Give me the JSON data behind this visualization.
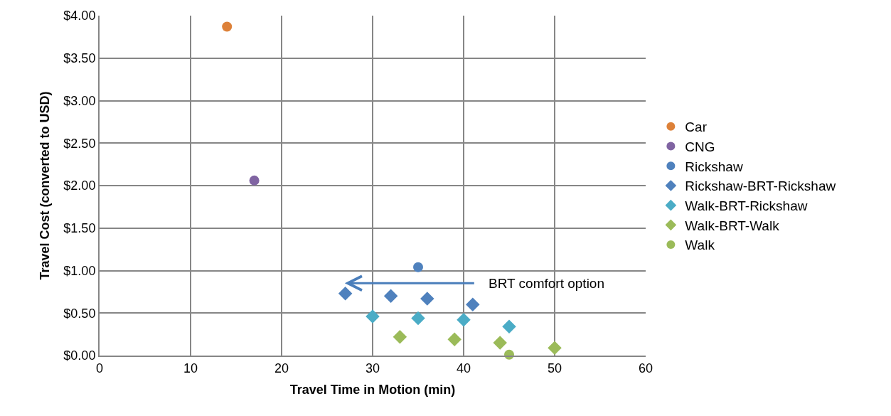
{
  "chart_data": {
    "type": "scatter",
    "xlabel": "Travel Time in Motion (min)",
    "ylabel": "Travel Cost (converted to USD)",
    "series": [
      {
        "name": "Car",
        "color": "#dd8139",
        "marker": "circle",
        "x": [
          14
        ],
        "values": [
          3.87
        ]
      },
      {
        "name": "CNG",
        "color": "#8064a2",
        "marker": "circle",
        "x": [
          17
        ],
        "values": [
          2.06
        ]
      },
      {
        "name": "Rickshaw",
        "color": "#4f81bd",
        "marker": "circle",
        "x": [
          35
        ],
        "values": [
          1.04
        ]
      },
      {
        "name": "Rickshaw-BRT-Rickshaw",
        "color": "#4f81bd",
        "marker": "diamond",
        "x": [
          27,
          32,
          36,
          41
        ],
        "values": [
          0.73,
          0.7,
          0.67,
          0.6
        ]
      },
      {
        "name": "Walk-BRT-Rickshaw",
        "color": "#4bacc6",
        "marker": "diamond",
        "x": [
          30,
          35,
          40,
          45
        ],
        "values": [
          0.46,
          0.44,
          0.42,
          0.34
        ]
      },
      {
        "name": "Walk-BRT-Walk",
        "color": "#9bbb59",
        "marker": "diamond",
        "x": [
          33,
          39,
          44,
          50
        ],
        "values": [
          0.22,
          0.19,
          0.15,
          0.09
        ]
      },
      {
        "name": "Walk",
        "color": "#9bbb59",
        "marker": "circle",
        "x": [
          45
        ],
        "values": [
          0.01
        ]
      }
    ],
    "annotations": [
      "BRT comfort option"
    ],
    "xlim": [
      0,
      60
    ],
    "xticks": [
      0,
      10,
      20,
      30,
      40,
      50,
      60
    ],
    "ylim": [
      0,
      4
    ],
    "yticks": [
      {
        "value": 0,
        "label": "$0.00"
      },
      {
        "value": 0.5,
        "label": "$0.50"
      },
      {
        "value": 1,
        "label": "$1.00"
      },
      {
        "value": 1.5,
        "label": "$1.50"
      },
      {
        "value": 2,
        "label": "$2.00"
      },
      {
        "value": 2.5,
        "label": "$2.50"
      },
      {
        "value": 3,
        "label": "$3.00"
      },
      {
        "value": 3.5,
        "label": "$3.50"
      },
      {
        "value": 4,
        "label": "$4.00"
      }
    ],
    "grid": true,
    "legend": "right"
  }
}
